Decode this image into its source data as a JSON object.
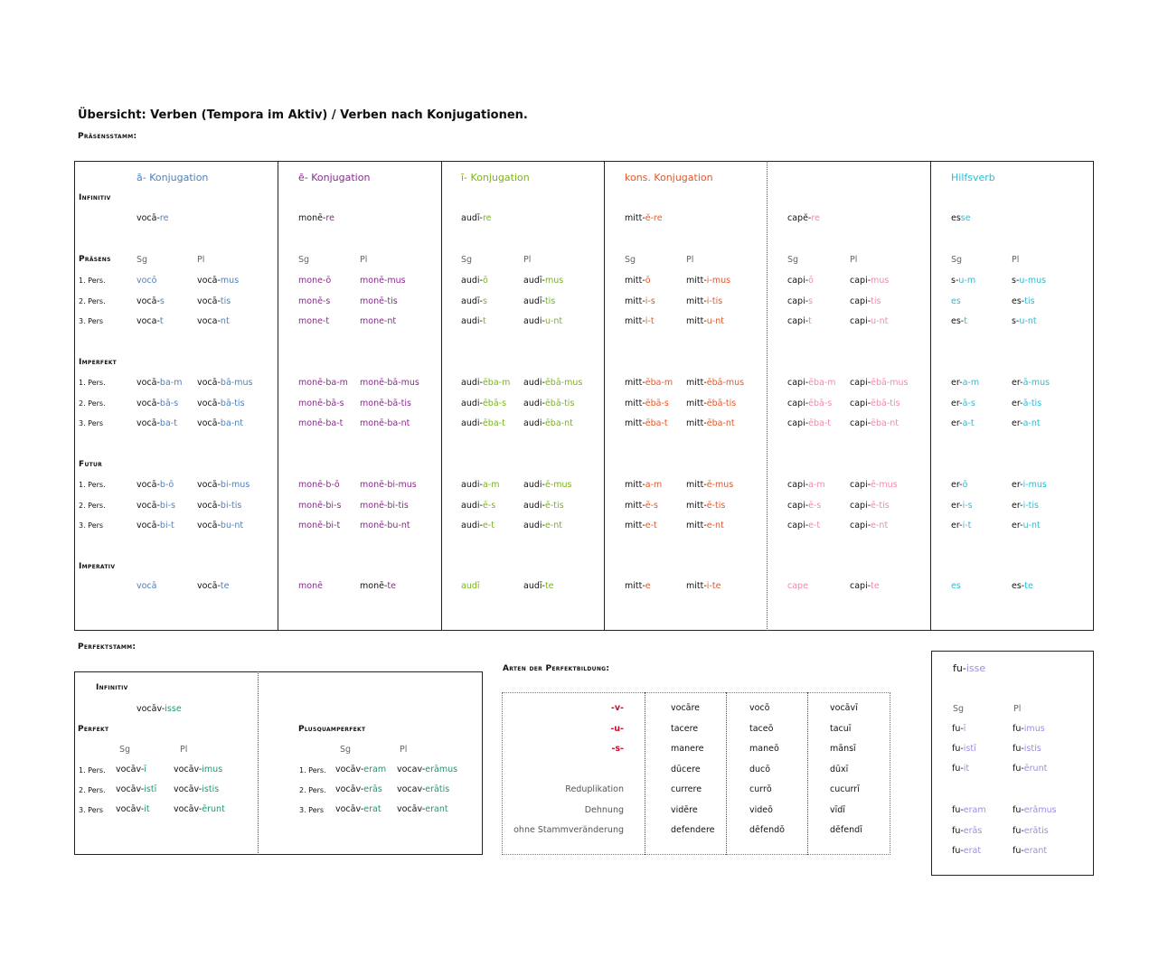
{
  "colors": {
    "a": "#4f7fb8",
    "e": "#8a2a8e",
    "i": "#7ab21e",
    "k": "#e0582a",
    "m": "#f08aa6",
    "h": "#2bbbd1",
    "p": "#1e9a6a",
    "r": "#c8102e",
    "f": "#9b8ee0"
  },
  "title": "Übersicht: Verben (Tempora im Aktiv) / Verben nach Konjugationen.",
  "praesensstamm": "Präsensstamm:",
  "perfektstamm": "Perfektstamm:",
  "rows": {
    "infinitiv": "Infinitiv",
    "praesens": "Präsens",
    "imperfekt": "Imperfekt",
    "futur": "Futur",
    "imperativ": "Imperativ",
    "p1": "1. Pers.",
    "p2": "2. Pers.",
    "p3": "3. Pers"
  },
  "cols": [
    {
      "head": "ā- Konjugation",
      "c": "a",
      "inf": [
        "vocā-",
        "re"
      ],
      "sg": "Sg",
      "pl": "Pl",
      "pr": [
        [
          [
            "vocō",
            ""
          ],
          [
            "vocā-",
            "mus"
          ]
        ],
        [
          [
            "vocā-",
            "s"
          ],
          [
            "vocā-",
            "tis"
          ]
        ],
        [
          [
            "voca-",
            "t"
          ],
          [
            "voca-",
            "nt"
          ]
        ]
      ],
      "ip": [
        [
          [
            "vocā-",
            "ba-m"
          ],
          [
            "vocā-",
            "bā-mus"
          ]
        ],
        [
          [
            "vocā-",
            "bā-s"
          ],
          [
            "vocā-",
            "bā-tis"
          ]
        ],
        [
          [
            "vocā-",
            "ba-t"
          ],
          [
            "vocā-",
            "ba-nt"
          ]
        ]
      ],
      "fu": [
        [
          [
            "vocā-",
            "b-ō"
          ],
          [
            "vocā-",
            "bi-mus"
          ]
        ],
        [
          [
            "vocā-",
            "bi-s"
          ],
          [
            "vocā-",
            "bi-tis"
          ]
        ],
        [
          [
            "vocā-",
            "bi-t"
          ],
          [
            "vocā-",
            "bu-nt"
          ]
        ]
      ],
      "im": [
        [
          "vocā",
          ""
        ],
        [
          "vocā-",
          "te"
        ]
      ]
    },
    {
      "head": "ē- Konjugation",
      "c": "e",
      "inf": [
        "monē-",
        "re"
      ],
      "sg": "Sg",
      "pl": "Pl",
      "pr": [
        [
          [
            "mone-ō",
            ""
          ],
          [
            "monē-mus",
            ""
          ]
        ],
        [
          [
            "monē-s",
            ""
          ],
          [
            "monē-tis",
            ""
          ]
        ],
        [
          [
            "mone-t",
            ""
          ],
          [
            "mone-nt",
            ""
          ]
        ]
      ],
      "ip": [
        [
          [
            "monē-ba-m",
            ""
          ],
          [
            "monē-bā-mus",
            ""
          ]
        ],
        [
          [
            "monē-bā-s",
            ""
          ],
          [
            "monē-bā-tis",
            ""
          ]
        ],
        [
          [
            "monē-ba-t",
            ""
          ],
          [
            "monē-ba-nt",
            ""
          ]
        ]
      ],
      "fu": [
        [
          [
            "monē-b-ō",
            ""
          ],
          [
            "monē-bi-mus",
            ""
          ]
        ],
        [
          [
            "monē-bi-s",
            ""
          ],
          [
            "monē-bi-tis",
            ""
          ]
        ],
        [
          [
            "monē-bi-t",
            ""
          ],
          [
            "monē-bu-nt",
            ""
          ]
        ]
      ],
      "im": [
        [
          "monē",
          ""
        ],
        [
          "monē-",
          "te"
        ]
      ]
    },
    {
      "head": "ī- Konjugation",
      "c": "i",
      "inf": [
        "audī-",
        "re"
      ],
      "sg": "Sg",
      "pl": "Pl",
      "pr": [
        [
          [
            "audi-",
            "ō"
          ],
          [
            "audī-",
            "mus"
          ]
        ],
        [
          [
            "audī-",
            "s"
          ],
          [
            "audī-",
            "tis"
          ]
        ],
        [
          [
            "audi-",
            "t"
          ],
          [
            "audi-",
            "u-nt"
          ]
        ]
      ],
      "ip": [
        [
          [
            "audi-",
            "ēba-m"
          ],
          [
            "audi-",
            "ēbā-mus"
          ]
        ],
        [
          [
            "audi-",
            "ēbā-s"
          ],
          [
            "audi-",
            "ēbā-tis"
          ]
        ],
        [
          [
            "audi-",
            "ēba-t"
          ],
          [
            "audi-",
            "ēba-nt"
          ]
        ]
      ],
      "fu": [
        [
          [
            "audi-",
            "a-m"
          ],
          [
            "audi-",
            "ē-mus"
          ]
        ],
        [
          [
            "audi-",
            "ē-s"
          ],
          [
            "audi-",
            "ē-tis"
          ]
        ],
        [
          [
            "audi-",
            "e-t"
          ],
          [
            "audi-",
            "e-nt"
          ]
        ]
      ],
      "im": [
        [
          "audī",
          ""
        ],
        [
          "audī-",
          "te"
        ]
      ]
    },
    {
      "head": "kons. Konjugation",
      "c": "k",
      "inf": [
        "mitt-",
        "ĕ-re"
      ],
      "sg": "Sg",
      "pl": "Pl",
      "pr": [
        [
          [
            "mitt-",
            "ō"
          ],
          [
            "mitt-",
            "i-mus"
          ]
        ],
        [
          [
            "mitt-",
            "i-s"
          ],
          [
            "mitt-",
            "i-tis"
          ]
        ],
        [
          [
            "mitt-",
            "i-t"
          ],
          [
            "mitt-",
            "u-nt"
          ]
        ]
      ],
      "ip": [
        [
          [
            "mitt-",
            "ēba-m"
          ],
          [
            "mitt-",
            "ēbā-mus"
          ]
        ],
        [
          [
            "mitt-",
            "ēbā-s"
          ],
          [
            "mitt-",
            "ēbā-tis"
          ]
        ],
        [
          [
            "mitt-",
            "ēba-t"
          ],
          [
            "mitt-",
            "ēba-nt"
          ]
        ]
      ],
      "fu": [
        [
          [
            "mitt-",
            "a-m"
          ],
          [
            "mitt-",
            "ē-mus"
          ]
        ],
        [
          [
            "mitt-",
            "ē-s"
          ],
          [
            "mitt-",
            "ē-tis"
          ]
        ],
        [
          [
            "mitt-",
            "e-t"
          ],
          [
            "mitt-",
            "e-nt"
          ]
        ]
      ],
      "im": [
        [
          "mitt-",
          "e"
        ],
        [
          "mitt-",
          "i-te"
        ]
      ]
    },
    {
      "head": "",
      "c": "m",
      "inf": [
        "capĕ-",
        "re"
      ],
      "sg": "Sg",
      "pl": "Pl",
      "pr": [
        [
          [
            "capi-",
            "ō"
          ],
          [
            "capi-",
            "mus"
          ]
        ],
        [
          [
            "capi-",
            "s"
          ],
          [
            "capi-",
            "tis"
          ]
        ],
        [
          [
            "capi-",
            "t"
          ],
          [
            "capi-",
            "u-nt"
          ]
        ]
      ],
      "ip": [
        [
          [
            "capi-",
            "ēba-m"
          ],
          [
            "capi-",
            "ēbā-mus"
          ]
        ],
        [
          [
            "capi-",
            "ēbā-s"
          ],
          [
            "capi-",
            "ēbā-tis"
          ]
        ],
        [
          [
            "capi-",
            "ēba-t"
          ],
          [
            "capi-",
            "ēba-nt"
          ]
        ]
      ],
      "fu": [
        [
          [
            "capi-",
            "a-m"
          ],
          [
            "capi-",
            "ē-mus"
          ]
        ],
        [
          [
            "capi-",
            "ē-s"
          ],
          [
            "capi-",
            "ē-tis"
          ]
        ],
        [
          [
            "capi-",
            "e-t"
          ],
          [
            "capi-",
            "e-nt"
          ]
        ]
      ],
      "im": [
        [
          "cape",
          ""
        ],
        [
          "capi-",
          "te"
        ]
      ]
    },
    {
      "head": "Hilfsverb",
      "c": "h",
      "inf": [
        "es",
        "se"
      ],
      "sg": "Sg",
      "pl": "Pl",
      "pr": [
        [
          [
            "s-",
            "u-m"
          ],
          [
            "s-",
            "u-mus"
          ]
        ],
        [
          [
            "es",
            ""
          ],
          [
            "es-",
            "tis"
          ]
        ],
        [
          [
            "es-",
            "t"
          ],
          [
            "s-",
            "u-nt"
          ]
        ]
      ],
      "ip": [
        [
          [
            "er-",
            "a-m"
          ],
          [
            "er-",
            "ā-mus"
          ]
        ],
        [
          [
            "er-",
            "ā-s"
          ],
          [
            "er-",
            "ā-tis"
          ]
        ],
        [
          [
            "er-",
            "a-t"
          ],
          [
            "er-",
            "a-nt"
          ]
        ]
      ],
      "fu": [
        [
          [
            "er-",
            "ō"
          ],
          [
            "er-",
            "i-mus"
          ]
        ],
        [
          [
            "er-",
            "i-s"
          ],
          [
            "er-",
            "i-tis"
          ]
        ],
        [
          [
            "er-",
            "i-t"
          ],
          [
            "er-",
            "u-nt"
          ]
        ]
      ],
      "im": [
        [
          "es",
          ""
        ],
        [
          "es-",
          "te"
        ]
      ]
    }
  ],
  "perf": {
    "infinitiv": "Infinitiv",
    "inf": [
      "vocāv-",
      "isse"
    ],
    "perfekt": "Perfekt",
    "plusq": "Plusquamperfekt",
    "sg": "Sg",
    "pl": "Pl",
    "p1": "1. Pers.",
    "p2": "2. Pers.",
    "p3": "3. Pers",
    "p1b": "1. Pers.",
    "p2b": "2. Pers.",
    "p3b": "3. Pers",
    "pf": [
      [
        [
          "vocāv-",
          "ī"
        ],
        [
          "vocāv-",
          "imus"
        ]
      ],
      [
        [
          "vocāv-",
          "istī"
        ],
        [
          "vocāv-",
          "istis"
        ]
      ],
      [
        [
          "vocāv-",
          "it"
        ],
        [
          "vocāv-",
          "ērunt"
        ]
      ]
    ],
    "pq": [
      [
        [
          "vocāv-",
          "eram"
        ],
        [
          "vocav-",
          "erāmus"
        ]
      ],
      [
        [
          "vocāv-",
          "erās"
        ],
        [
          "vocav-",
          "erātis"
        ]
      ],
      [
        [
          "vocāv-",
          "erat"
        ],
        [
          "vocāv-",
          "erant"
        ]
      ]
    ]
  },
  "arten": {
    "title": "Arten der Perfektbildung:",
    "labels": [
      "-v-",
      "-u-",
      "-s-",
      "",
      "Reduplikation",
      "Dehnung",
      "ohne Stammveränderung"
    ],
    "c1": [
      "vocāre",
      "tacere",
      "manere",
      "dūcere",
      "currere",
      "vidēre",
      "defendere"
    ],
    "c2": [
      "vocō",
      "taceō",
      "maneō",
      "ducō",
      "currō",
      "videō",
      "dēfendō"
    ],
    "c3": [
      "vocāvī",
      "tacuī",
      "mānsī",
      "dūxī",
      "cucurrī",
      "vīdī",
      "dēfendī"
    ]
  },
  "fu": {
    "inf": [
      "fu-",
      "isse"
    ],
    "sg": "Sg",
    "pl": "Pl",
    "a": [
      [
        [
          "fu-",
          "ī"
        ],
        [
          "fu-",
          "imus"
        ]
      ],
      [
        [
          "fu-",
          "istī"
        ],
        [
          "fu-",
          "istis"
        ]
      ],
      [
        [
          "fu-",
          "it"
        ],
        [
          "fu-",
          "ērunt"
        ]
      ]
    ],
    "b": [
      [
        [
          "fu-",
          "eram"
        ],
        [
          "fu-",
          "erāmus"
        ]
      ],
      [
        [
          "fu-",
          "erās"
        ],
        [
          "fu-",
          "erātis"
        ]
      ],
      [
        [
          "fu-",
          "erat"
        ],
        [
          "fu-",
          "erant"
        ]
      ]
    ]
  }
}
